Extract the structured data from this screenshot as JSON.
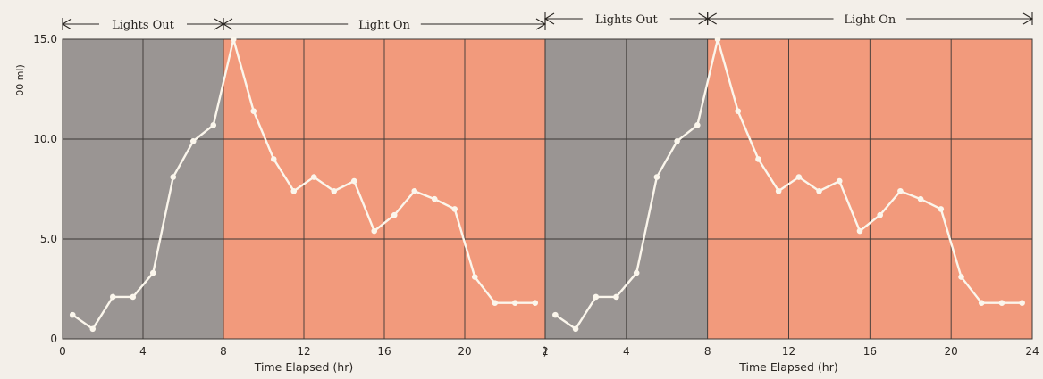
{
  "colors": {
    "background": "#f3efe9",
    "dark_period": "#9a9593",
    "light_period": "#f29a7c",
    "grid": "#3b3735",
    "line": "#fbf6ec"
  },
  "chart_data": [
    {
      "type": "line",
      "title": "",
      "xlabel": "Time Elapsed (hr)",
      "ylabel": "00 ml)",
      "xlim": [
        0,
        24
      ],
      "ylim": [
        0,
        15
      ],
      "grid": true,
      "x_ticks": [
        "0",
        "4",
        "8",
        "12",
        "16",
        "20",
        "2"
      ],
      "y_ticks": [
        "0",
        "5.0",
        "10.0",
        "15.0"
      ],
      "periods": [
        {
          "label": "Lights Out",
          "from": 0,
          "to": 8,
          "shade": "dark"
        },
        {
          "label": "Light On",
          "from": 8,
          "to": 24,
          "shade": "light"
        }
      ],
      "series": [
        {
          "x": [
            0.5,
            1.5,
            2.5,
            3.5,
            4.5,
            5.5,
            6.5,
            7.5,
            8.5,
            9.5,
            10.5,
            11.5,
            12.5,
            13.5,
            14.5,
            15.5,
            16.5,
            17.5,
            18.5,
            19.5,
            20.5,
            21.5,
            22.5,
            23.5
          ],
          "y": [
            1.2,
            0.5,
            2.1,
            2.1,
            3.3,
            8.1,
            9.9,
            10.7,
            15.0,
            11.4,
            9.0,
            7.4,
            8.1,
            7.4,
            7.9,
            5.4,
            6.2,
            7.4,
            7.0,
            6.5,
            3.1,
            1.8,
            1.8,
            1.8
          ]
        }
      ]
    },
    {
      "type": "line",
      "title": "",
      "xlabel": "Time Elapsed (hr)",
      "ylabel": "",
      "xlim": [
        0,
        24
      ],
      "ylim": [
        0,
        15
      ],
      "grid": true,
      "x_ticks": [
        ")",
        "4",
        "8",
        "12",
        "16",
        "20",
        "24"
      ],
      "y_ticks": [],
      "periods": [
        {
          "label": "Lights Out",
          "from": 0,
          "to": 8,
          "shade": "dark"
        },
        {
          "label": "Light On",
          "from": 8,
          "to": 24,
          "shade": "light"
        }
      ],
      "series": [
        {
          "x": [
            0.5,
            1.5,
            2.5,
            3.5,
            4.5,
            5.5,
            6.5,
            7.5,
            8.5,
            9.5,
            10.5,
            11.5,
            12.5,
            13.5,
            14.5,
            15.5,
            16.5,
            17.5,
            18.5,
            19.5,
            20.5,
            21.5,
            22.5,
            23.5
          ],
          "y": [
            1.2,
            0.5,
            2.1,
            2.1,
            3.3,
            8.1,
            9.9,
            10.7,
            15.0,
            11.4,
            9.0,
            7.4,
            8.1,
            7.4,
            7.9,
            5.4,
            6.2,
            7.4,
            7.0,
            6.5,
            3.1,
            1.8,
            1.8,
            1.8
          ]
        }
      ]
    }
  ]
}
